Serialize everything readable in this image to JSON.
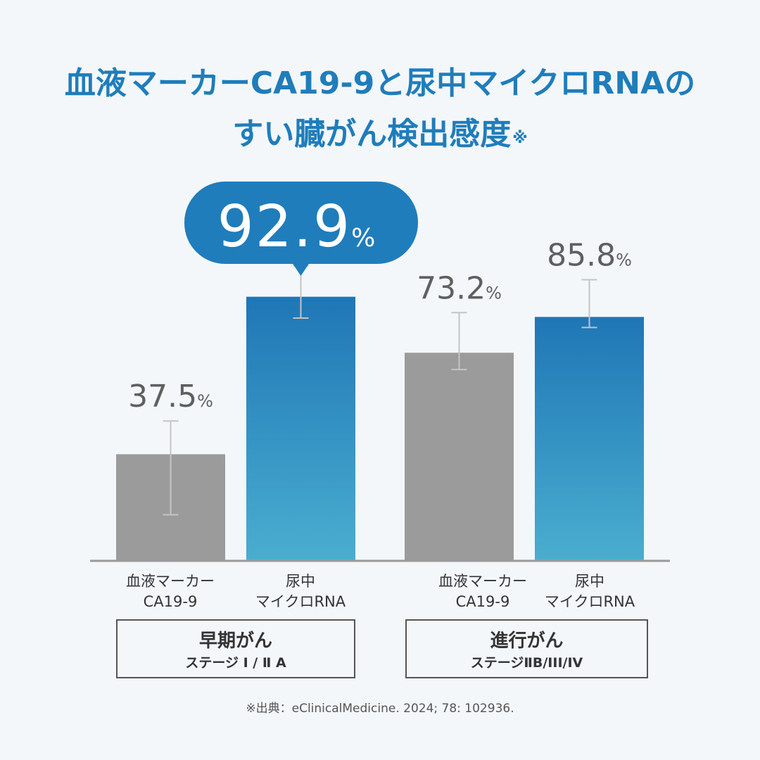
{
  "title": {
    "line1": "血液マーカーCA19-9と尿中マイクロRNAの",
    "line2": "すい臓がん検出感度",
    "mark": "※"
  },
  "chart_data": {
    "type": "bar",
    "ylim": [
      0,
      100
    ],
    "unit": "%",
    "groups": [
      {
        "name": "早期がん",
        "stage": "ステージ Ⅰ / Ⅱ A",
        "bars": [
          {
            "label": "血液マーカー\nCA19-9",
            "label_lines": [
              "血液マーカー",
              "CA19-9"
            ],
            "value": 37.5,
            "value_text": "37.5",
            "ci": [
              16.2,
              49.2
            ],
            "color": "#9b9b9b"
          },
          {
            "label": "尿中\nマイクロRNA",
            "label_lines": [
              "尿中",
              "マイクロRNA"
            ],
            "value": 92.9,
            "value_text": "92.9",
            "ci": [
              85.4,
              103.8
            ],
            "color": "blue",
            "highlight": true
          }
        ]
      },
      {
        "name": "進行がん",
        "stage": "ステージⅡB/III/IV",
        "bars": [
          {
            "label": "血液マーカー\nCA19-9",
            "label_lines": [
              "血液マーカー",
              "CA19-9"
            ],
            "value": 73.2,
            "value_text": "73.2",
            "ci": [
              67.3,
              87.3
            ],
            "color": "#9b9b9b"
          },
          {
            "label": "尿中\nマイクロRNA",
            "label_lines": [
              "尿中",
              "マイクロRNA"
            ],
            "value": 85.8,
            "value_text": "85.8",
            "ci": [
              82.1,
              98.9
            ],
            "color": "blue"
          }
        ]
      }
    ],
    "colors": {
      "grey_bar": "#9b9b9b",
      "blue_top": "#1f76b6",
      "blue_bottom": "#4aaecf",
      "callout": "#1f7dbb",
      "axis": "#9a9a9a",
      "whisker": "#c4c4c4"
    }
  },
  "source": "※出典：eClinicalMedicine. 2024; 78: 102936."
}
